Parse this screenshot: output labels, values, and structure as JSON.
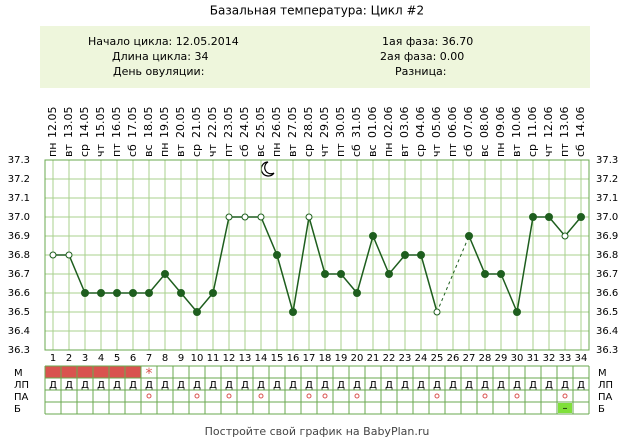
{
  "header": {
    "title": "Базальная температура: Цикл #2"
  },
  "info": {
    "left": [
      "Начало цикла: 12.05.2014",
      "Длина цикла: 34",
      "День овуляции:"
    ],
    "right": [
      "1ая фаза: 36.70",
      "2ая фаза: 0.00",
      "Разница:"
    ]
  },
  "chart_data": {
    "type": "line",
    "color": "#1e5e1e",
    "weekdays": [
      "пн",
      "вт",
      "ср",
      "чт",
      "пт",
      "сб",
      "вс",
      "пн",
      "вт",
      "ср",
      "чт",
      "пт",
      "сб",
      "вс",
      "пн",
      "вт",
      "ср",
      "чт",
      "пт",
      "сб",
      "вс",
      "пн",
      "вт",
      "ср",
      "чт",
      "пт",
      "сб",
      "вс",
      "пн",
      "вт",
      "ср",
      "чт",
      "пт",
      "сб"
    ],
    "categories": [
      "12.05",
      "13.05",
      "14.05",
      "15.05",
      "16.05",
      "17.05",
      "18.05",
      "19.05",
      "20.05",
      "21.05",
      "22.05",
      "23.05",
      "24.05",
      "25.05",
      "26.05",
      "27.05",
      "28.05",
      "29.05",
      "30.05",
      "31.05",
      "01.06",
      "02.06",
      "03.06",
      "04.06",
      "05.06",
      "06.06",
      "07.06",
      "08.06",
      "09.06",
      "10.06",
      "11.06",
      "12.06",
      "13.06",
      "14.06"
    ],
    "days": [
      1,
      2,
      3,
      4,
      5,
      6,
      7,
      8,
      9,
      10,
      11,
      12,
      13,
      14,
      15,
      16,
      17,
      18,
      19,
      20,
      21,
      22,
      23,
      24,
      25,
      26,
      27,
      28,
      29,
      30,
      31,
      32,
      33,
      34
    ],
    "values": [
      36.8,
      36.8,
      36.6,
      36.6,
      36.6,
      36.6,
      36.6,
      36.7,
      36.6,
      36.5,
      36.6,
      37.0,
      37.0,
      37.0,
      36.8,
      36.5,
      37.0,
      36.7,
      36.7,
      36.6,
      36.9,
      36.7,
      36.8,
      36.8,
      36.5,
      null,
      36.9,
      36.7,
      36.7,
      36.5,
      37.0,
      37.0,
      36.9,
      37.0
    ],
    "open_markers": [
      true,
      true,
      false,
      false,
      false,
      false,
      false,
      false,
      false,
      false,
      false,
      true,
      true,
      true,
      false,
      false,
      true,
      false,
      false,
      false,
      false,
      false,
      false,
      false,
      true,
      false,
      false,
      false,
      false,
      false,
      false,
      false,
      true,
      false
    ],
    "ylim": [
      36.3,
      37.3
    ],
    "yticks": [
      36.3,
      36.4,
      36.5,
      36.6,
      36.7,
      36.8,
      36.9,
      {
        "value": 37.0,
        "label": "37.0"
      },
      37.1,
      37.2,
      37.3
    ],
    "grid": true
  },
  "table": {
    "row_labels": [
      "М",
      "ЛП",
      "ПА",
      "Б"
    ],
    "menstruation_days": [
      1,
      2,
      3,
      4,
      5,
      6
    ],
    "star": "*",
    "star_day": 7,
    "lp": [
      "Д",
      "Д",
      "Д",
      "Д",
      "Д",
      "Д",
      "Д",
      "Д",
      "Д",
      "Д",
      "Д",
      "Д",
      "Д",
      "Д",
      "Д",
      "Д",
      "Д",
      "Д",
      "Д",
      "Д",
      "Д",
      "Д",
      "Д",
      "Д",
      "Д",
      "Д",
      "Д",
      "Д",
      "Д",
      "Д",
      "Д",
      "Д",
      "Д",
      "Д"
    ],
    "pa_days": [
      7,
      10,
      12,
      14,
      17,
      18,
      20,
      25,
      28,
      30,
      33
    ],
    "b_days": [
      33
    ],
    "b_text": "–"
  },
  "footer": {
    "text": "Постройте свой график на BabyPlan.ru"
  }
}
